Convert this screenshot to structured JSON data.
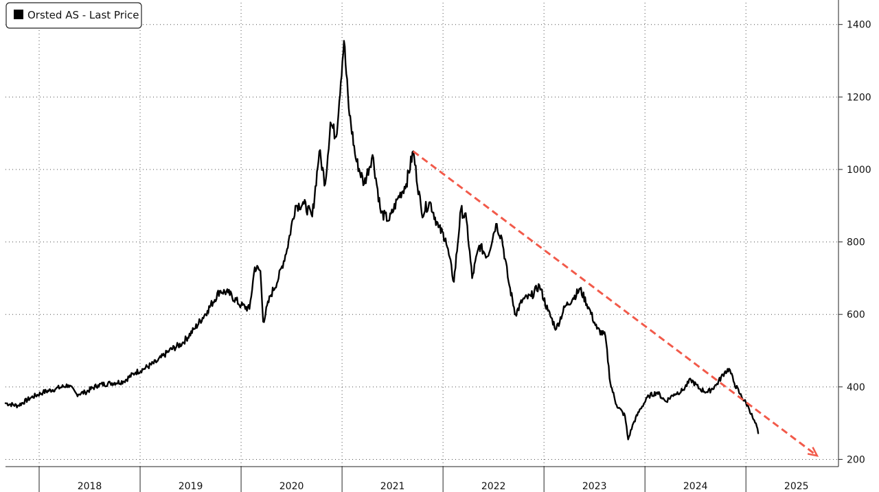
{
  "chart_data": {
    "type": "line",
    "title": "",
    "xlabel": "",
    "ylabel": "",
    "x_range": [
      "2017-09",
      "2025-12"
    ],
    "ylim": [
      180,
      1460
    ],
    "y_axis_side": "right",
    "grid": true,
    "legend_position": "top-left",
    "x_tick_labels": [
      "2018",
      "2019",
      "2020",
      "2021",
      "2022",
      "2023",
      "2024",
      "2025"
    ],
    "y_ticks": [
      200,
      400,
      600,
      800,
      1000,
      1200,
      1400
    ],
    "series": [
      {
        "name": "Orsted AS - Last Price",
        "color": "#000000",
        "points": [
          [
            "2017-09-01",
            355
          ],
          [
            "2017-10-15",
            348
          ],
          [
            "2017-12-01",
            370
          ],
          [
            "2018-01-15",
            385
          ],
          [
            "2018-03-01",
            395
          ],
          [
            "2018-04-15",
            405
          ],
          [
            "2018-05-15",
            380
          ],
          [
            "2018-06-15",
            385
          ],
          [
            "2018-08-01",
            405
          ],
          [
            "2018-09-15",
            410
          ],
          [
            "2018-11-01",
            415
          ],
          [
            "2018-12-15",
            440
          ],
          [
            "2019-01-15",
            450
          ],
          [
            "2019-03-01",
            470
          ],
          [
            "2019-04-15",
            500
          ],
          [
            "2019-06-01",
            520
          ],
          [
            "2019-07-15",
            560
          ],
          [
            "2019-09-01",
            610
          ],
          [
            "2019-10-15",
            665
          ],
          [
            "2019-11-15",
            660
          ],
          [
            "2020-01-01",
            625
          ],
          [
            "2020-02-01",
            615
          ],
          [
            "2020-02-20",
            730
          ],
          [
            "2020-03-10",
            720
          ],
          [
            "2020-03-20",
            580
          ],
          [
            "2020-04-15",
            650
          ],
          [
            "2020-05-15",
            700
          ],
          [
            "2020-06-15",
            780
          ],
          [
            "2020-07-15",
            900
          ],
          [
            "2020-08-15",
            905
          ],
          [
            "2020-09-15",
            870
          ],
          [
            "2020-10-10",
            1050
          ],
          [
            "2020-11-01",
            960
          ],
          [
            "2020-11-20",
            1130
          ],
          [
            "2020-12-10",
            1090
          ],
          [
            "2021-01-08",
            1355
          ],
          [
            "2021-01-25",
            1170
          ],
          [
            "2021-02-20",
            1030
          ],
          [
            "2021-03-20",
            960
          ],
          [
            "2021-04-20",
            1040
          ],
          [
            "2021-05-20",
            880
          ],
          [
            "2021-06-20",
            860
          ],
          [
            "2021-07-20",
            920
          ],
          [
            "2021-08-20",
            960
          ],
          [
            "2021-09-15",
            1050
          ],
          [
            "2021-10-15",
            880
          ],
          [
            "2021-11-15",
            910
          ],
          [
            "2021-12-15",
            840
          ],
          [
            "2022-01-10",
            810
          ],
          [
            "2022-02-10",
            690
          ],
          [
            "2022-03-05",
            890
          ],
          [
            "2022-03-25",
            860
          ],
          [
            "2022-04-15",
            700
          ],
          [
            "2022-05-10",
            790
          ],
          [
            "2022-06-10",
            760
          ],
          [
            "2022-07-10",
            850
          ],
          [
            "2022-08-01",
            810
          ],
          [
            "2022-08-25",
            690
          ],
          [
            "2022-09-20",
            600
          ],
          [
            "2022-10-15",
            640
          ],
          [
            "2022-11-15",
            650
          ],
          [
            "2022-12-15",
            680
          ],
          [
            "2023-01-15",
            610
          ],
          [
            "2023-02-15",
            560
          ],
          [
            "2023-03-15",
            620
          ],
          [
            "2023-04-15",
            645
          ],
          [
            "2023-05-10",
            670
          ],
          [
            "2023-06-10",
            620
          ],
          [
            "2023-07-10",
            560
          ],
          [
            "2023-08-10",
            540
          ],
          [
            "2023-08-28",
            410
          ],
          [
            "2023-09-20",
            350
          ],
          [
            "2023-10-20",
            320
          ],
          [
            "2023-11-01",
            255
          ],
          [
            "2023-11-20",
            300
          ],
          [
            "2023-12-15",
            340
          ],
          [
            "2024-01-15",
            375
          ],
          [
            "2024-02-15",
            385
          ],
          [
            "2024-03-15",
            360
          ],
          [
            "2024-04-15",
            380
          ],
          [
            "2024-05-15",
            390
          ],
          [
            "2024-06-15",
            420
          ],
          [
            "2024-07-15",
            395
          ],
          [
            "2024-08-15",
            385
          ],
          [
            "2024-09-15",
            405
          ],
          [
            "2024-10-15",
            440
          ],
          [
            "2024-11-01",
            450
          ],
          [
            "2024-11-20",
            410
          ],
          [
            "2024-12-10",
            380
          ],
          [
            "2025-01-10",
            345
          ],
          [
            "2025-01-28",
            310
          ],
          [
            "2025-02-10",
            290
          ],
          [
            "2025-02-15",
            272
          ]
        ]
      }
    ],
    "trend_line": {
      "color": "#f25a4a",
      "style": "dashed-arrow",
      "start": [
        "2021-09-15",
        1050
      ],
      "end": [
        "2025-09-15",
        210
      ]
    }
  }
}
